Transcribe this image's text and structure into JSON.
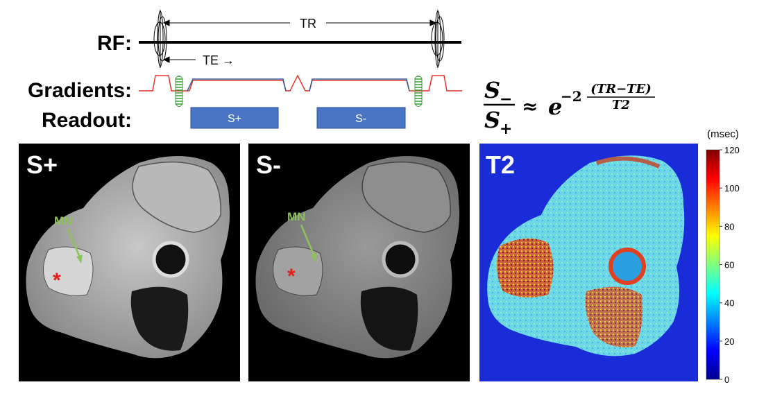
{
  "sequence": {
    "rf_label": "RF:",
    "gradients_label": "Gradients:",
    "readout_label": "Readout:",
    "tr_label": "TR",
    "te_label": "TE →",
    "readout_pos": "S+",
    "readout_neg": "S-"
  },
  "equation": {
    "num_base": "S",
    "num_sub": "−",
    "den_base": "S",
    "den_sub": "+",
    "approx": "≈",
    "e": "e",
    "exp_prefix": "−2",
    "exp_num": "(TR−TE)",
    "exp_den": "T2"
  },
  "panels": [
    {
      "label": "S+",
      "mn_label": "MN",
      "marker": "*"
    },
    {
      "label": "S-",
      "mn_label": "MN",
      "marker": "*"
    },
    {
      "label": "T2"
    }
  ],
  "colorbar": {
    "unit": "(msec)",
    "ticks": [
      "120",
      "100",
      "80",
      "60",
      "40",
      "20",
      "0"
    ]
  },
  "colors": {
    "rf_line": "#000000",
    "gradient_red": "#e8322a",
    "gradient_blue": "#2e5f9e",
    "crusher_green": "#3a9a3a",
    "readout_box": "#4a74c4",
    "mn_arrow": "#8cc25a",
    "marker": "#e0201c",
    "t2_background": "#1a2cd8"
  }
}
